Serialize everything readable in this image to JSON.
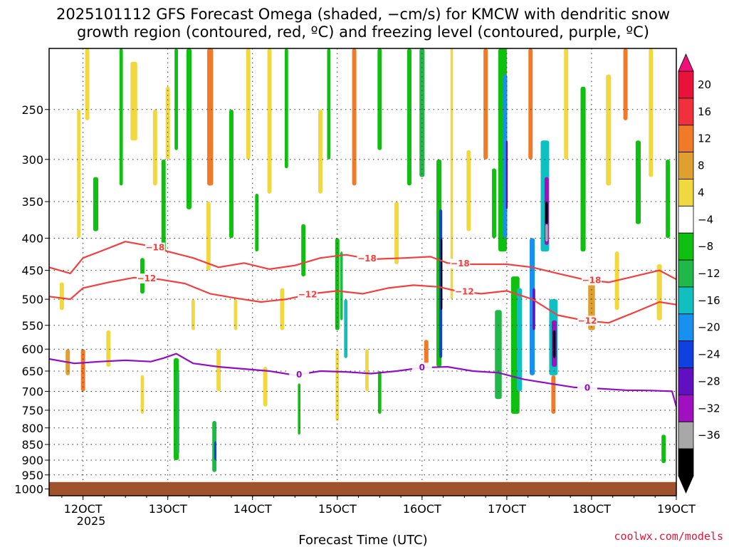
{
  "chart_data": {
    "type": "heatmap",
    "title_line1": "2025101112 GFS Forecast Omega (shaded, −cm/s) for KMCW with dendritic snow",
    "title_line2": "growth region (contoured, red, ºC) and freezing level (contoured, purple, ºC)",
    "xlabel": "Forecast Time (UTC)",
    "year_label": "2025",
    "credit": "coolwx.com/models",
    "x_ticks": [
      "12OCT",
      "13OCT",
      "14OCT",
      "15OCT",
      "16OCT",
      "17OCT",
      "18OCT",
      "19OCT"
    ],
    "x_range_days": [
      11.6,
      19.0
    ],
    "y_ticks": [
      250,
      300,
      350,
      400,
      450,
      500,
      550,
      600,
      650,
      700,
      750,
      800,
      850,
      900,
      950,
      1000
    ],
    "y_range_hpa": [
      200,
      1025
    ],
    "surface_pressure_hpa": 975,
    "colorbar": {
      "labels": [
        "20",
        "16",
        "12",
        "8",
        "4",
        "−4",
        "−8",
        "−12",
        "−16",
        "−20",
        "−24",
        "−28",
        "−32",
        "−36"
      ],
      "colors": [
        "#e8123a",
        "#f0303c",
        "#f07a28",
        "#e0a030",
        "#f0d840",
        "#ffffff",
        "#10c010",
        "#20b848",
        "#10c0c0",
        "#1890f0",
        "#1040e0",
        "#6010c0",
        "#a010c0",
        "#a8a8a8",
        "#000000"
      ],
      "top_arrow_color": "#f0107a"
    },
    "palette": {
      "yellow": "#f0d840",
      "gold": "#e0a030",
      "orange": "#f07a28",
      "green": "#10c010",
      "teal": "#20b848",
      "cyan": "#10c0c0",
      "blue": "#1890f0",
      "darkblue": "#1040e0",
      "purple": "#6010c0",
      "violet": "#a010c0",
      "gray": "#a8a8a8",
      "black": "#000000"
    },
    "omega_cells": [
      {
        "t": 11.75,
        "p0": 470,
        "p1": 520,
        "w": 0.05,
        "c": "yellow"
      },
      {
        "t": 11.82,
        "p0": 600,
        "p1": 660,
        "w": 0.05,
        "c": "gold"
      },
      {
        "t": 11.95,
        "p0": 250,
        "p1": 400,
        "w": 0.04,
        "c": "yellow"
      },
      {
        "t": 12.0,
        "p0": 600,
        "p1": 700,
        "w": 0.05,
        "c": "orange"
      },
      {
        "t": 12.05,
        "p0": 200,
        "p1": 260,
        "w": 0.05,
        "c": "yellow"
      },
      {
        "t": 12.15,
        "p0": 320,
        "p1": 390,
        "w": 0.06,
        "c": "green"
      },
      {
        "t": 12.3,
        "p0": 560,
        "p1": 640,
        "w": 0.05,
        "c": "yellow"
      },
      {
        "t": 12.45,
        "p0": 200,
        "p1": 330,
        "w": 0.04,
        "c": "green"
      },
      {
        "t": 12.6,
        "p0": 210,
        "p1": 280,
        "w": 0.08,
        "c": "yellow"
      },
      {
        "t": 12.7,
        "p0": 430,
        "p1": 490,
        "w": 0.05,
        "c": "green"
      },
      {
        "t": 12.7,
        "p0": 660,
        "p1": 760,
        "w": 0.04,
        "c": "yellow"
      },
      {
        "t": 12.85,
        "p0": 250,
        "p1": 330,
        "w": 0.05,
        "c": "yellow"
      },
      {
        "t": 12.95,
        "p0": 300,
        "p1": 420,
        "w": 0.05,
        "c": "green"
      },
      {
        "t": 13.0,
        "p0": 230,
        "p1": 300,
        "w": 0.05,
        "c": "yellow"
      },
      {
        "t": 13.1,
        "p0": 200,
        "p1": 290,
        "w": 0.04,
        "c": "green"
      },
      {
        "t": 13.1,
        "p0": 620,
        "p1": 900,
        "w": 0.06,
        "c": "green"
      },
      {
        "t": 13.12,
        "p0": 650,
        "p1": 880,
        "w": 0.03,
        "c": "teal"
      },
      {
        "t": 13.25,
        "p0": 200,
        "p1": 360,
        "w": 0.06,
        "c": "green"
      },
      {
        "t": 13.3,
        "p0": 500,
        "p1": 560,
        "w": 0.04,
        "c": "yellow"
      },
      {
        "t": 13.5,
        "p0": 200,
        "p1": 330,
        "w": 0.07,
        "c": "orange"
      },
      {
        "t": 13.48,
        "p0": 350,
        "p1": 450,
        "w": 0.05,
        "c": "yellow"
      },
      {
        "t": 13.55,
        "p0": 780,
        "p1": 940,
        "w": 0.05,
        "c": "teal"
      },
      {
        "t": 13.56,
        "p0": 840,
        "p1": 900,
        "w": 0.025,
        "c": "darkblue"
      },
      {
        "t": 13.6,
        "p0": 600,
        "p1": 700,
        "w": 0.05,
        "c": "yellow"
      },
      {
        "t": 13.75,
        "p0": 250,
        "p1": 400,
        "w": 0.05,
        "c": "green"
      },
      {
        "t": 13.8,
        "p0": 500,
        "p1": 560,
        "w": 0.04,
        "c": "yellow"
      },
      {
        "t": 13.95,
        "p0": 200,
        "p1": 300,
        "w": 0.05,
        "c": "yellow"
      },
      {
        "t": 14.05,
        "p0": 340,
        "p1": 420,
        "w": 0.04,
        "c": "green"
      },
      {
        "t": 14.15,
        "p0": 640,
        "p1": 740,
        "w": 0.05,
        "c": "yellow"
      },
      {
        "t": 14.2,
        "p0": 200,
        "p1": 340,
        "w": 0.05,
        "c": "yellow"
      },
      {
        "t": 14.35,
        "p0": 480,
        "p1": 560,
        "w": 0.05,
        "c": "yellow"
      },
      {
        "t": 14.4,
        "p0": 200,
        "p1": 310,
        "w": 0.04,
        "c": "green"
      },
      {
        "t": 14.55,
        "p0": 680,
        "p1": 820,
        "w": 0.03,
        "c": "green"
      },
      {
        "t": 14.6,
        "p0": 380,
        "p1": 460,
        "w": 0.05,
        "c": "green"
      },
      {
        "t": 14.8,
        "p0": 250,
        "p1": 340,
        "w": 0.05,
        "c": "yellow"
      },
      {
        "t": 14.9,
        "p0": 200,
        "p1": 300,
        "w": 0.04,
        "c": "green"
      },
      {
        "t": 15.0,
        "p0": 400,
        "p1": 560,
        "w": 0.05,
        "c": "green"
      },
      {
        "t": 15.05,
        "p0": 420,
        "p1": 540,
        "w": 0.03,
        "c": "teal"
      },
      {
        "t": 15.1,
        "p0": 500,
        "p1": 620,
        "w": 0.04,
        "c": "cyan"
      },
      {
        "t": 15.0,
        "p0": 600,
        "p1": 780,
        "w": 0.04,
        "c": "yellow"
      },
      {
        "t": 15.2,
        "p0": 200,
        "p1": 330,
        "w": 0.05,
        "c": "orange"
      },
      {
        "t": 15.35,
        "p0": 600,
        "p1": 700,
        "w": 0.04,
        "c": "yellow"
      },
      {
        "t": 15.5,
        "p0": 200,
        "p1": 290,
        "w": 0.05,
        "c": "green"
      },
      {
        "t": 15.5,
        "p0": 650,
        "p1": 760,
        "w": 0.04,
        "c": "green"
      },
      {
        "t": 15.7,
        "p0": 350,
        "p1": 440,
        "w": 0.05,
        "c": "yellow"
      },
      {
        "t": 15.85,
        "p0": 200,
        "p1": 330,
        "w": 0.05,
        "c": "green"
      },
      {
        "t": 16.0,
        "p0": 200,
        "p1": 320,
        "w": 0.06,
        "c": "teal"
      },
      {
        "t": 16.05,
        "p0": 580,
        "p1": 640,
        "w": 0.05,
        "c": "orange"
      },
      {
        "t": 16.2,
        "p0": 300,
        "p1": 640,
        "w": 0.06,
        "c": "green"
      },
      {
        "t": 16.22,
        "p0": 360,
        "p1": 620,
        "w": 0.035,
        "c": "darkblue"
      },
      {
        "t": 16.23,
        "p0": 400,
        "p1": 520,
        "w": 0.02,
        "c": "black"
      },
      {
        "t": 16.35,
        "p0": 200,
        "p1": 500,
        "w": 0.03,
        "c": "yellow"
      },
      {
        "t": 16.55,
        "p0": 290,
        "p1": 390,
        "w": 0.05,
        "c": "yellow"
      },
      {
        "t": 16.75,
        "p0": 200,
        "p1": 300,
        "w": 0.05,
        "c": "orange"
      },
      {
        "t": 16.85,
        "p0": 310,
        "p1": 400,
        "w": 0.05,
        "c": "green"
      },
      {
        "t": 16.95,
        "p0": 200,
        "p1": 420,
        "w": 0.1,
        "c": "green"
      },
      {
        "t": 16.98,
        "p0": 220,
        "p1": 400,
        "w": 0.05,
        "c": "blue"
      },
      {
        "t": 17.0,
        "p0": 280,
        "p1": 360,
        "w": 0.02,
        "c": "purple"
      },
      {
        "t": 16.9,
        "p0": 520,
        "p1": 720,
        "w": 0.08,
        "c": "teal"
      },
      {
        "t": 17.1,
        "p0": 460,
        "p1": 760,
        "w": 0.1,
        "c": "green"
      },
      {
        "t": 17.15,
        "p0": 480,
        "p1": 700,
        "w": 0.06,
        "c": "cyan"
      },
      {
        "t": 17.28,
        "p0": 200,
        "p1": 300,
        "w": 0.05,
        "c": "orange"
      },
      {
        "t": 17.3,
        "p0": 400,
        "p1": 660,
        "w": 0.06,
        "c": "blue"
      },
      {
        "t": 17.32,
        "p0": 480,
        "p1": 560,
        "w": 0.03,
        "c": "purple"
      },
      {
        "t": 17.45,
        "p0": 280,
        "p1": 420,
        "w": 0.1,
        "c": "cyan"
      },
      {
        "t": 17.47,
        "p0": 320,
        "p1": 410,
        "w": 0.05,
        "c": "violet"
      },
      {
        "t": 17.47,
        "p0": 350,
        "p1": 380,
        "w": 0.03,
        "c": "black"
      },
      {
        "t": 17.47,
        "p0": 380,
        "p1": 405,
        "w": 0.03,
        "c": "gray"
      },
      {
        "t": 17.55,
        "p0": 500,
        "p1": 660,
        "w": 0.1,
        "c": "cyan"
      },
      {
        "t": 17.56,
        "p0": 540,
        "p1": 640,
        "w": 0.06,
        "c": "violet"
      },
      {
        "t": 17.56,
        "p0": 560,
        "p1": 620,
        "w": 0.03,
        "c": "black"
      },
      {
        "t": 17.55,
        "p0": 660,
        "p1": 760,
        "w": 0.05,
        "c": "orange"
      },
      {
        "t": 17.7,
        "p0": 200,
        "p1": 300,
        "w": 0.05,
        "c": "yellow"
      },
      {
        "t": 17.9,
        "p0": 230,
        "p1": 420,
        "w": 0.06,
        "c": "green"
      },
      {
        "t": 18.0,
        "p0": 460,
        "p1": 560,
        "w": 0.08,
        "c": "gold"
      },
      {
        "t": 18.2,
        "p0": 220,
        "p1": 330,
        "w": 0.06,
        "c": "yellow"
      },
      {
        "t": 18.3,
        "p0": 420,
        "p1": 520,
        "w": 0.05,
        "c": "yellow"
      },
      {
        "t": 18.4,
        "p0": 200,
        "p1": 260,
        "w": 0.05,
        "c": "orange"
      },
      {
        "t": 18.55,
        "p0": 280,
        "p1": 380,
        "w": 0.06,
        "c": "green"
      },
      {
        "t": 18.7,
        "p0": 200,
        "p1": 320,
        "w": 0.05,
        "c": "yellow"
      },
      {
        "t": 18.8,
        "p0": 440,
        "p1": 540,
        "w": 0.06,
        "c": "yellow"
      },
      {
        "t": 18.85,
        "p0": 820,
        "p1": 910,
        "w": 0.05,
        "c": "green"
      },
      {
        "t": 18.9,
        "p0": 300,
        "p1": 400,
        "w": 0.05,
        "c": "green"
      }
    ],
    "contour_m18": {
      "label": "−18",
      "color": "#f04040",
      "points": [
        [
          11.6,
          445
        ],
        [
          11.85,
          455
        ],
        [
          12.0,
          430
        ],
        [
          12.2,
          420
        ],
        [
          12.5,
          405
        ],
        [
          12.8,
          412
        ],
        [
          13.0,
          420
        ],
        [
          13.3,
          430
        ],
        [
          13.6,
          445
        ],
        [
          13.9,
          438
        ],
        [
          14.2,
          448
        ],
        [
          14.5,
          442
        ],
        [
          14.8,
          430
        ],
        [
          15.1,
          425
        ],
        [
          15.4,
          432
        ],
        [
          15.8,
          430
        ],
        [
          16.1,
          428
        ],
        [
          16.3,
          438
        ],
        [
          16.6,
          440
        ],
        [
          17.0,
          440
        ],
        [
          17.3,
          445
        ],
        [
          17.6,
          455
        ],
        [
          17.9,
          465
        ],
        [
          18.2,
          470
        ],
        [
          18.5,
          460
        ],
        [
          18.8,
          450
        ],
        [
          19.0,
          465
        ]
      ]
    },
    "contour_m12": {
      "label": "−12",
      "color": "#f04040",
      "points": [
        [
          11.6,
          495
        ],
        [
          11.85,
          500
        ],
        [
          12.0,
          480
        ],
        [
          12.3,
          470
        ],
        [
          12.6,
          462
        ],
        [
          12.9,
          465
        ],
        [
          13.2,
          472
        ],
        [
          13.5,
          490
        ],
        [
          13.8,
          498
        ],
        [
          14.1,
          505
        ],
        [
          14.4,
          500
        ],
        [
          14.7,
          490
        ],
        [
          15.0,
          485
        ],
        [
          15.3,
          490
        ],
        [
          15.6,
          480
        ],
        [
          15.9,
          475
        ],
        [
          16.2,
          478
        ],
        [
          16.4,
          485
        ],
        [
          16.7,
          490
        ],
        [
          17.0,
          485
        ],
        [
          17.3,
          500
        ],
        [
          17.6,
          530
        ],
        [
          17.9,
          540
        ],
        [
          18.2,
          545
        ],
        [
          18.5,
          525
        ],
        [
          18.8,
          505
        ],
        [
          19.0,
          510
        ]
      ]
    },
    "contour_0": {
      "label": "0",
      "color": "#9010c0",
      "points": [
        [
          11.6,
          622
        ],
        [
          11.9,
          632
        ],
        [
          12.2,
          628
        ],
        [
          12.5,
          625
        ],
        [
          12.8,
          628
        ],
        [
          12.95,
          620
        ],
        [
          13.1,
          610
        ],
        [
          13.3,
          632
        ],
        [
          13.6,
          640
        ],
        [
          13.9,
          645
        ],
        [
          14.2,
          650
        ],
        [
          14.5,
          660
        ],
        [
          14.8,
          650
        ],
        [
          15.1,
          652
        ],
        [
          15.4,
          656
        ],
        [
          15.7,
          650
        ],
        [
          16.0,
          642
        ],
        [
          16.3,
          640
        ],
        [
          16.6,
          650
        ],
        [
          16.9,
          654
        ],
        [
          17.2,
          670
        ],
        [
          17.5,
          680
        ],
        [
          17.8,
          690
        ],
        [
          18.1,
          693
        ],
        [
          18.4,
          697
        ],
        [
          18.7,
          698
        ],
        [
          18.95,
          700
        ],
        [
          19.0,
          740
        ]
      ]
    }
  }
}
